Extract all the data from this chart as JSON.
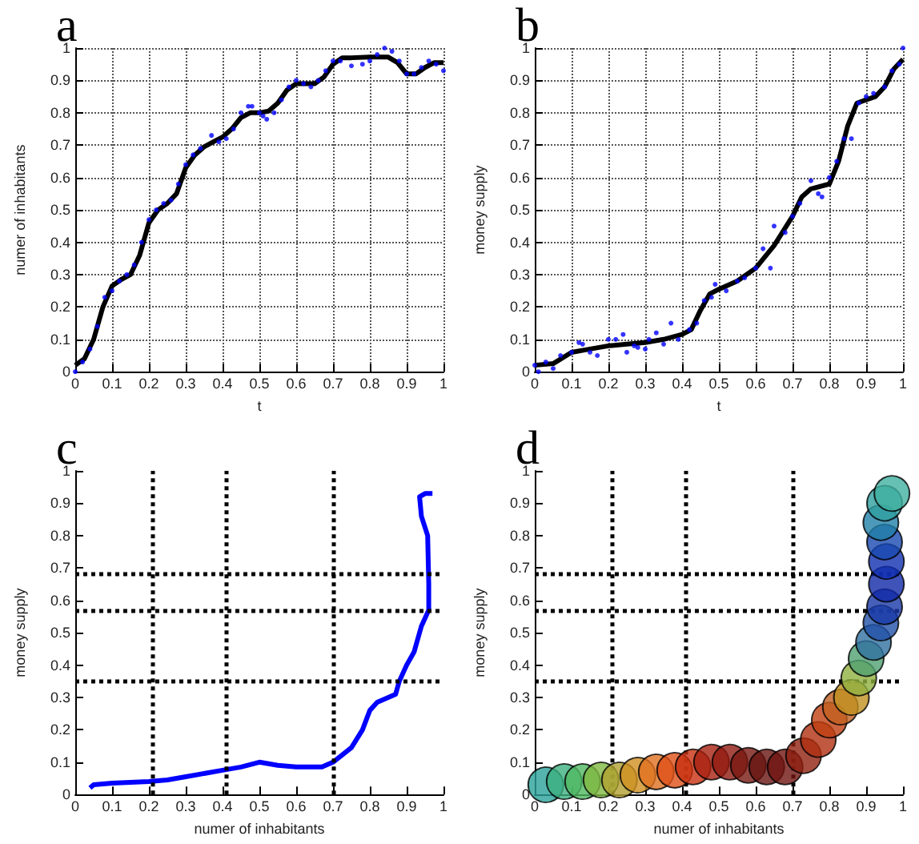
{
  "chart_data": [
    {
      "type": "line",
      "title": "a",
      "xlabel": "t",
      "ylabel": "numer of inhabitants",
      "xlim": [
        0,
        1
      ],
      "ylim": [
        0,
        1
      ],
      "xticks": [
        0,
        0.1,
        0.2,
        0.3,
        0.4,
        0.5,
        0.6,
        0.7,
        0.8,
        0.9,
        1
      ],
      "yticks": [
        0,
        0.1,
        0.2,
        0.3,
        0.4,
        0.5,
        0.6,
        0.7,
        0.8,
        0.9,
        1
      ],
      "grid": true,
      "series": [
        {
          "type": "scatter",
          "color": "#0000ff",
          "x": [
            0,
            0.02,
            0.04,
            0.06,
            0.08,
            0.1,
            0.12,
            0.14,
            0.16,
            0.18,
            0.2,
            0.22,
            0.24,
            0.26,
            0.28,
            0.3,
            0.32,
            0.34,
            0.37,
            0.39,
            0.41,
            0.43,
            0.45,
            0.47,
            0.48,
            0.5,
            0.51,
            0.52,
            0.54,
            0.56,
            0.58,
            0.6,
            0.62,
            0.64,
            0.66,
            0.68,
            0.7,
            0.72,
            0.75,
            0.78,
            0.8,
            0.82,
            0.84,
            0.86,
            0.88,
            0.9,
            0.92,
            0.94,
            0.96,
            0.98,
            1
          ],
          "values": [
            0,
            0.03,
            0.07,
            0.14,
            0.23,
            0.25,
            0.28,
            0.3,
            0.33,
            0.4,
            0.47,
            0.5,
            0.52,
            0.53,
            0.58,
            0.64,
            0.67,
            0.69,
            0.73,
            0.71,
            0.72,
            0.75,
            0.8,
            0.82,
            0.82,
            0.8,
            0.79,
            0.78,
            0.8,
            0.84,
            0.88,
            0.9,
            0.89,
            0.88,
            0.9,
            0.93,
            0.96,
            0.96,
            0.945,
            0.95,
            0.96,
            0.98,
            1,
            0.99,
            0.96,
            0.92,
            0.92,
            0.94,
            0.96,
            0.95,
            0.93
          ]
        },
        {
          "color": "#000000",
          "x": [
            0,
            0.025,
            0.05,
            0.075,
            0.1,
            0.125,
            0.15,
            0.175,
            0.2,
            0.225,
            0.25,
            0.275,
            0.3,
            0.325,
            0.35,
            0.375,
            0.4,
            0.425,
            0.45,
            0.475,
            0.5,
            0.525,
            0.55,
            0.575,
            0.6,
            0.625,
            0.65,
            0.675,
            0.7,
            0.725,
            0.75,
            0.8,
            0.85,
            0.875,
            0.9,
            0.925,
            0.95,
            0.975,
            1
          ],
          "values": [
            0.02,
            0.04,
            0.1,
            0.2,
            0.265,
            0.285,
            0.3,
            0.36,
            0.46,
            0.5,
            0.52,
            0.55,
            0.63,
            0.67,
            0.695,
            0.71,
            0.725,
            0.75,
            0.785,
            0.8,
            0.8,
            0.805,
            0.83,
            0.87,
            0.89,
            0.89,
            0.89,
            0.91,
            0.95,
            0.97,
            0.97,
            0.972,
            0.972,
            0.955,
            0.92,
            0.92,
            0.94,
            0.955,
            0.955
          ]
        }
      ]
    },
    {
      "type": "line",
      "title": "b",
      "xlabel": "t",
      "ylabel": "money supply",
      "xlim": [
        0,
        1
      ],
      "ylim": [
        0,
        1
      ],
      "xticks": [
        0,
        0.1,
        0.2,
        0.3,
        0.4,
        0.5,
        0.6,
        0.7,
        0.8,
        0.9,
        1
      ],
      "yticks": [
        0,
        0.1,
        0.2,
        0.3,
        0.4,
        0.5,
        0.6,
        0.7,
        0.8,
        0.9,
        1
      ],
      "grid": true,
      "series": [
        {
          "type": "scatter",
          "color": "#0000ff",
          "x": [
            0,
            0.01,
            0.03,
            0.05,
            0.07,
            0.1,
            0.12,
            0.13,
            0.15,
            0.17,
            0.2,
            0.22,
            0.24,
            0.25,
            0.27,
            0.28,
            0.3,
            0.31,
            0.33,
            0.35,
            0.37,
            0.39,
            0.42,
            0.44,
            0.46,
            0.48,
            0.49,
            0.52,
            0.55,
            0.57,
            0.6,
            0.62,
            0.64,
            0.65,
            0.68,
            0.7,
            0.72,
            0.75,
            0.77,
            0.78,
            0.8,
            0.82,
            0.84,
            0.86,
            0.88,
            0.9,
            0.92,
            0.95,
            0.97,
            0.99,
            1
          ],
          "values": [
            0.02,
            0,
            0.03,
            0.01,
            0.05,
            0.06,
            0.09,
            0.085,
            0.06,
            0.05,
            0.1,
            0.1,
            0.115,
            0.06,
            0.08,
            0.075,
            0.07,
            0.1,
            0.12,
            0.085,
            0.15,
            0.1,
            0.13,
            0.15,
            0.22,
            0.23,
            0.27,
            0.25,
            0.28,
            0.29,
            0.32,
            0.38,
            0.32,
            0.45,
            0.43,
            0.48,
            0.52,
            0.59,
            0.55,
            0.54,
            0.6,
            0.65,
            0.72,
            0.72,
            0.83,
            0.85,
            0.86,
            0.88,
            0.93,
            0.95,
            1
          ]
        },
        {
          "color": "#000000",
          "x": [
            0,
            0.05,
            0.1,
            0.15,
            0.2,
            0.25,
            0.3,
            0.35,
            0.4,
            0.425,
            0.45,
            0.475,
            0.5,
            0.55,
            0.6,
            0.65,
            0.7,
            0.725,
            0.75,
            0.8,
            0.825,
            0.85,
            0.875,
            0.9,
            0.925,
            0.95,
            0.975,
            1
          ],
          "values": [
            0.02,
            0.025,
            0.06,
            0.07,
            0.08,
            0.085,
            0.09,
            0.1,
            0.115,
            0.13,
            0.19,
            0.24,
            0.255,
            0.28,
            0.32,
            0.39,
            0.48,
            0.54,
            0.565,
            0.58,
            0.65,
            0.76,
            0.83,
            0.84,
            0.85,
            0.88,
            0.935,
            0.965
          ]
        }
      ]
    },
    {
      "type": "line",
      "title": "c",
      "xlabel": "numer of inhabitants",
      "ylabel": "money supply",
      "xlim": [
        0,
        1
      ],
      "ylim": [
        0,
        1
      ],
      "xticks": [
        0,
        0.1,
        0.2,
        0.3,
        0.4,
        0.5,
        0.6,
        0.7,
        0.8,
        0.9,
        1
      ],
      "yticks": [
        0,
        0.1,
        0.2,
        0.3,
        0.4,
        0.5,
        0.6,
        0.7,
        0.8,
        0.9,
        1
      ],
      "ref_lines": [
        {
          "axis": "x",
          "value": 0.21,
          "color": "#000000",
          "line_style": "dotted"
        },
        {
          "axis": "x",
          "value": 0.415,
          "color": "#000000",
          "line_style": "dotted"
        },
        {
          "axis": "x",
          "value": 0.7,
          "color": "#000000",
          "line_style": "dotted"
        },
        {
          "axis": "y",
          "value": 0.35,
          "color": "#000000",
          "line_style": "dotted"
        },
        {
          "axis": "y",
          "value": 0.575,
          "color": "#000000",
          "line_style": "dotted"
        },
        {
          "axis": "y",
          "value": 0.675,
          "color": "#000000",
          "line_style": "dotted"
        }
      ],
      "series": [
        {
          "color": "#0000ff",
          "x": [
            0.04,
            0.05,
            0.1,
            0.2,
            0.25,
            0.3,
            0.4,
            0.45,
            0.5,
            0.55,
            0.6,
            0.67,
            0.7,
            0.75,
            0.78,
            0.8,
            0.82,
            0.87,
            0.88,
            0.9,
            0.92,
            0.94,
            0.96,
            0.96,
            0.957,
            0.94,
            0.935,
            0.95,
            0.97
          ],
          "values": [
            0.02,
            0.03,
            0.035,
            0.04,
            0.045,
            0.055,
            0.075,
            0.085,
            0.1,
            0.09,
            0.085,
            0.085,
            0.1,
            0.145,
            0.2,
            0.26,
            0.285,
            0.31,
            0.35,
            0.4,
            0.44,
            0.52,
            0.57,
            0.65,
            0.8,
            0.86,
            0.92,
            0.93,
            0.93
          ]
        }
      ]
    },
    {
      "type": "scatter",
      "title": "d",
      "xlabel": "numer of inhabitants",
      "ylabel": "money supply",
      "xlim": [
        0,
        1
      ],
      "ylim": [
        0,
        1
      ],
      "xticks": [
        0,
        0.1,
        0.2,
        0.3,
        0.4,
        0.5,
        0.6,
        0.7,
        0.8,
        0.9,
        1
      ],
      "yticks": [
        0,
        0.1,
        0.2,
        0.3,
        0.4,
        0.5,
        0.6,
        0.7,
        0.8,
        0.9,
        1
      ],
      "ref_lines": [
        {
          "axis": "x",
          "value": 0.21,
          "color": "#000000",
          "line_style": "dotted"
        },
        {
          "axis": "x",
          "value": 0.415,
          "color": "#000000",
          "line_style": "dotted"
        },
        {
          "axis": "x",
          "value": 0.7,
          "color": "#000000",
          "line_style": "dotted"
        },
        {
          "axis": "y",
          "value": 0.35,
          "color": "#000000",
          "line_style": "dotted"
        },
        {
          "axis": "y",
          "value": 0.575,
          "color": "#000000",
          "line_style": "dotted"
        },
        {
          "axis": "y",
          "value": 0.675,
          "color": "#000000",
          "line_style": "dotted"
        }
      ],
      "series": [
        {
          "x": [
            0.03,
            0.08,
            0.13,
            0.18,
            0.23,
            0.28,
            0.33,
            0.38,
            0.43,
            0.48,
            0.53,
            0.58,
            0.63,
            0.68,
            0.73,
            0.77,
            0.8,
            0.83,
            0.86,
            0.88,
            0.9,
            0.92,
            0.94,
            0.95,
            0.955,
            0.955,
            0.95,
            0.94,
            0.95,
            0.97
          ],
          "values": [
            0.03,
            0.04,
            0.04,
            0.045,
            0.045,
            0.06,
            0.07,
            0.075,
            0.085,
            0.1,
            0.1,
            0.09,
            0.085,
            0.085,
            0.12,
            0.17,
            0.23,
            0.27,
            0.3,
            0.36,
            0.42,
            0.47,
            0.53,
            0.58,
            0.65,
            0.72,
            0.78,
            0.84,
            0.9,
            0.93
          ],
          "colors": [
            "#2aa39a",
            "#3cb080",
            "#50b860",
            "#80b840",
            "#b0a030",
            "#d09020",
            "#e07020",
            "#e05018",
            "#c83010",
            "#a82010",
            "#901a10",
            "#781810",
            "#681410",
            "#701410",
            "#902010",
            "#b03010",
            "#c04010",
            "#c06020",
            "#c09020",
            "#90b040",
            "#50a070",
            "#3070a0",
            "#2050a8",
            "#1838a8",
            "#1028a8",
            "#1030b0",
            "#1848b0",
            "#2080a8",
            "#30a0a0",
            "#40b0a0"
          ]
        }
      ]
    }
  ]
}
